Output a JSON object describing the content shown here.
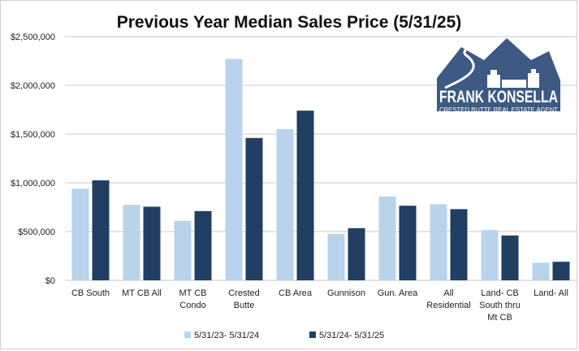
{
  "chart_data": {
    "type": "bar",
    "title": "Previous Year Median Sales Price (5/31/25)",
    "categories": [
      [
        "CB South"
      ],
      [
        "MT CB All"
      ],
      [
        "MT CB",
        "Condo"
      ],
      [
        "Crested",
        "Butte"
      ],
      [
        "CB Area"
      ],
      [
        "Gunnison"
      ],
      [
        "Gun. Area"
      ],
      [
        "All",
        "Residential"
      ],
      [
        "Land- CB",
        "South thru",
        "Mt CB"
      ],
      [
        "Land- All"
      ]
    ],
    "series": [
      {
        "name": "5/31/23- 5/31/24",
        "color": "#b8d3ec",
        "values": [
          940000,
          775000,
          610000,
          2270000,
          1550000,
          475000,
          860000,
          780000,
          515000,
          180000
        ]
      },
      {
        "name": "5/31/24- 5/31/25",
        "color": "#203f63",
        "values": [
          1025000,
          755000,
          710000,
          1460000,
          1740000,
          535000,
          765000,
          730000,
          460000,
          190000
        ]
      }
    ],
    "ylim": [
      0,
      2500000
    ],
    "yticks": [
      0,
      500000,
      1000000,
      1500000,
      2000000,
      2500000
    ],
    "ytick_labels": [
      "$0",
      "$500,000",
      "$1,000,000",
      "$1,500,000",
      "$2,000,000",
      "$2,500,000"
    ],
    "grid": true,
    "legend_position": "bottom"
  },
  "logo": {
    "name": "FRANK KONSELLA",
    "tagline": "CRESTED BUTTE REAL ESTATE AGENT",
    "color": "#3c5a83"
  }
}
